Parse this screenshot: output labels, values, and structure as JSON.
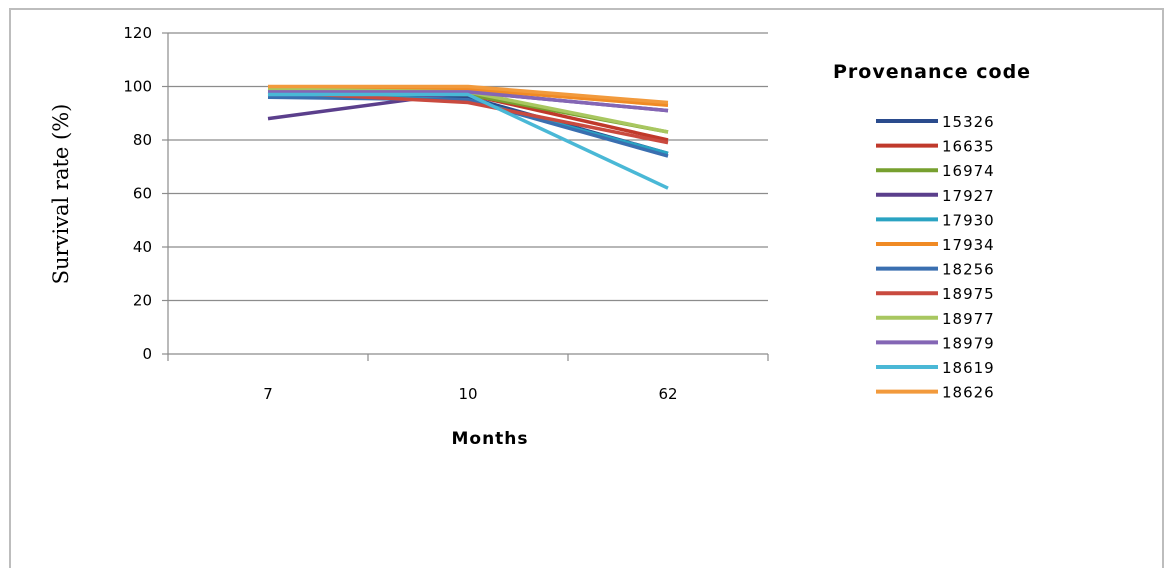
{
  "chart_data": {
    "type": "line",
    "title": "",
    "xlabel": "Months",
    "ylabel": "Survival rate (%)",
    "categories": [
      "7",
      "10",
      "62"
    ],
    "ylim": [
      0,
      120
    ],
    "yticks": [
      "0",
      "20",
      "40",
      "60",
      "80",
      "100",
      "120"
    ],
    "grid": true,
    "legend_title": "Provenance code",
    "legend_position": "right",
    "series": [
      {
        "name": "15326",
        "color": "#2a4b8d",
        "values": [
          97,
          96,
          75
        ]
      },
      {
        "name": "16635",
        "color": "#c0392b",
        "values": [
          99,
          97,
          80
        ]
      },
      {
        "name": "16974",
        "color": "#77a02f",
        "values": [
          98,
          97,
          83
        ]
      },
      {
        "name": "17927",
        "color": "#5b3f8c",
        "values": [
          88,
          98,
          91
        ]
      },
      {
        "name": "17930",
        "color": "#2aa3c2",
        "values": [
          97,
          95,
          75
        ]
      },
      {
        "name": "17934",
        "color": "#f08a24",
        "values": [
          99,
          99,
          93
        ]
      },
      {
        "name": "18256",
        "color": "#3a6fb0",
        "values": [
          96,
          95,
          74
        ]
      },
      {
        "name": "18975",
        "color": "#c94a3f",
        "values": [
          98,
          94,
          79
        ]
      },
      {
        "name": "18977",
        "color": "#a8c760",
        "values": [
          99,
          98,
          83
        ]
      },
      {
        "name": "18979",
        "color": "#8466b5",
        "values": [
          98,
          98,
          91
        ]
      },
      {
        "name": "18619",
        "color": "#4ab8d6",
        "values": [
          97,
          97,
          62
        ]
      },
      {
        "name": "18626",
        "color": "#f29a3c",
        "values": [
          100,
          100,
          94
        ]
      }
    ]
  }
}
